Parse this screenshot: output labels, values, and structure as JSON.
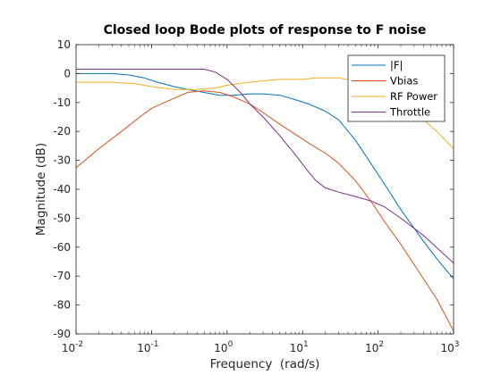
{
  "chart_data": {
    "type": "line",
    "title": "Closed loop Bode plots of response to F noise",
    "xlabel": "Frequency  (rad/s)",
    "ylabel": "Magnitude (dB)",
    "xscale": "log",
    "xlim": [
      0.01,
      1000
    ],
    "ylim": [
      -90,
      10
    ],
    "xticks": [
      {
        "value": 0.01,
        "mantissa": "10",
        "exp": "-2"
      },
      {
        "value": 0.1,
        "mantissa": "10",
        "exp": "-1"
      },
      {
        "value": 1,
        "mantissa": "10",
        "exp": "0"
      },
      {
        "value": 10,
        "mantissa": "10",
        "exp": "1"
      },
      {
        "value": 100,
        "mantissa": "10",
        "exp": "2"
      },
      {
        "value": 1000,
        "mantissa": "10",
        "exp": "3"
      }
    ],
    "yticks": [
      10,
      0,
      -10,
      -20,
      -30,
      -40,
      -50,
      -60,
      -70,
      -80,
      -90
    ],
    "grid": false,
    "legend_position": "top-right",
    "series": [
      {
        "name": "|F|",
        "color": "#0072bd",
        "x": [
          0.01,
          0.03,
          0.05,
          0.08,
          0.12,
          0.2,
          0.3,
          0.5,
          0.8,
          1.2,
          2,
          3,
          5,
          8,
          12,
          20,
          30,
          50,
          80,
          120,
          200,
          400,
          600,
          1000
        ],
        "y": [
          0,
          0,
          -0.5,
          -1.5,
          -3,
          -4.5,
          -5.5,
          -6.5,
          -7.5,
          -7.5,
          -7,
          -7,
          -7.5,
          -9,
          -10.5,
          -13,
          -16,
          -23,
          -31,
          -38,
          -47,
          -58,
          -64,
          -71
        ]
      },
      {
        "name": "Vbias",
        "color": "#d95319",
        "x": [
          0.01,
          0.02,
          0.04,
          0.07,
          0.1,
          0.2,
          0.3,
          0.5,
          0.8,
          1.2,
          2,
          3,
          5,
          8,
          12,
          20,
          30,
          50,
          80,
          120,
          200,
          400,
          600,
          1000
        ],
        "y": [
          -32.5,
          -26,
          -20,
          -15,
          -12,
          -8.5,
          -6.5,
          -6,
          -6.5,
          -8,
          -10.5,
          -13.5,
          -17.5,
          -21,
          -24,
          -27.5,
          -31,
          -37,
          -44,
          -51,
          -59,
          -71,
          -78,
          -89
        ]
      },
      {
        "name": "RF Power",
        "color": "#edb120",
        "x": [
          0.01,
          0.03,
          0.06,
          0.1,
          0.2,
          0.4,
          0.7,
          1,
          2,
          3,
          5,
          10,
          15,
          20,
          30,
          50,
          80,
          120,
          200,
          400,
          600,
          1000
        ],
        "y": [
          -3,
          -3,
          -3.5,
          -4.5,
          -5.5,
          -5.5,
          -5,
          -4,
          -3,
          -2.5,
          -2,
          -2,
          -1.5,
          -1.5,
          -1.5,
          -2.5,
          -4.5,
          -7,
          -10,
          -16,
          -20,
          -26
        ]
      },
      {
        "name": "Throttle",
        "color": "#7e2f8e",
        "x": [
          0.01,
          0.05,
          0.2,
          0.5,
          0.7,
          1,
          1.5,
          2,
          3,
          5,
          8,
          12,
          15,
          20,
          30,
          50,
          80,
          120,
          200,
          400,
          1000
        ],
        "y": [
          1.5,
          1.5,
          1.5,
          1.5,
          0.5,
          -2,
          -6.5,
          -10.5,
          -15,
          -21.5,
          -28,
          -34,
          -37,
          -39.5,
          -41,
          -42.5,
          -44,
          -46,
          -50,
          -56,
          -65.5
        ]
      }
    ]
  }
}
